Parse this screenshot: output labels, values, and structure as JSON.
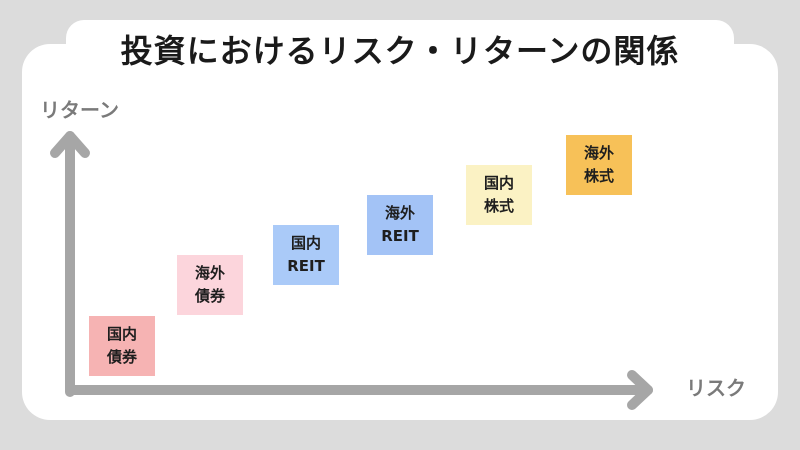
{
  "title": "投資におけるリスク・リターンの関係",
  "axes": {
    "y_label": "リターン",
    "x_label": "リスク",
    "color": "#a6a6a6"
  },
  "assets": [
    {
      "line1": "国内",
      "line2": "債券",
      "color": "#f6b3b3"
    },
    {
      "line1": "海外",
      "line2": "債券",
      "color": "#fcd5dc"
    },
    {
      "line1": "国内",
      "line2": "REIT",
      "color": "#aacaf8"
    },
    {
      "line1": "海外",
      "line2": "REIT",
      "color": "#a3c3f6"
    },
    {
      "line1": "国内",
      "line2": "株式",
      "color": "#fbf2c4"
    },
    {
      "line1": "海外",
      "line2": "株式",
      "color": "#f7c158"
    }
  ]
}
